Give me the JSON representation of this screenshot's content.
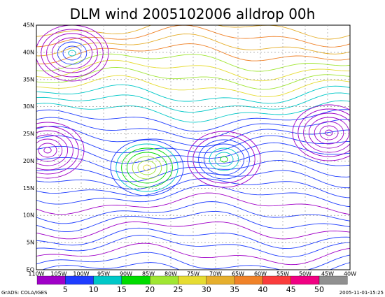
{
  "header": {
    "title": "DLM wind 2005102006 alldrop 00h"
  },
  "map": {
    "lat_labels": [
      "45N",
      "40N",
      "35N",
      "30N",
      "25N",
      "20N",
      "15N",
      "10N",
      "5N",
      "EQ"
    ],
    "lon_labels": [
      "110W",
      "105W",
      "100W",
      "95W",
      "90W",
      "85W",
      "80W",
      "75W",
      "70W",
      "65W",
      "60W",
      "55W",
      "50W",
      "45W",
      "40W"
    ]
  },
  "colorbar": {
    "colors": [
      "#a000c8",
      "#1e3cff",
      "#00c8c8",
      "#00dc00",
      "#a0e632",
      "#e6dc32",
      "#e6af2d",
      "#f08228",
      "#fa3c3c",
      "#f00082",
      "#909090"
    ],
    "labels": [
      5,
      10,
      15,
      20,
      25,
      30,
      35,
      40,
      45,
      50
    ]
  },
  "footer": {
    "left": "GrADS: COLA/IGES",
    "right": "2005-11-01-15:25"
  }
}
